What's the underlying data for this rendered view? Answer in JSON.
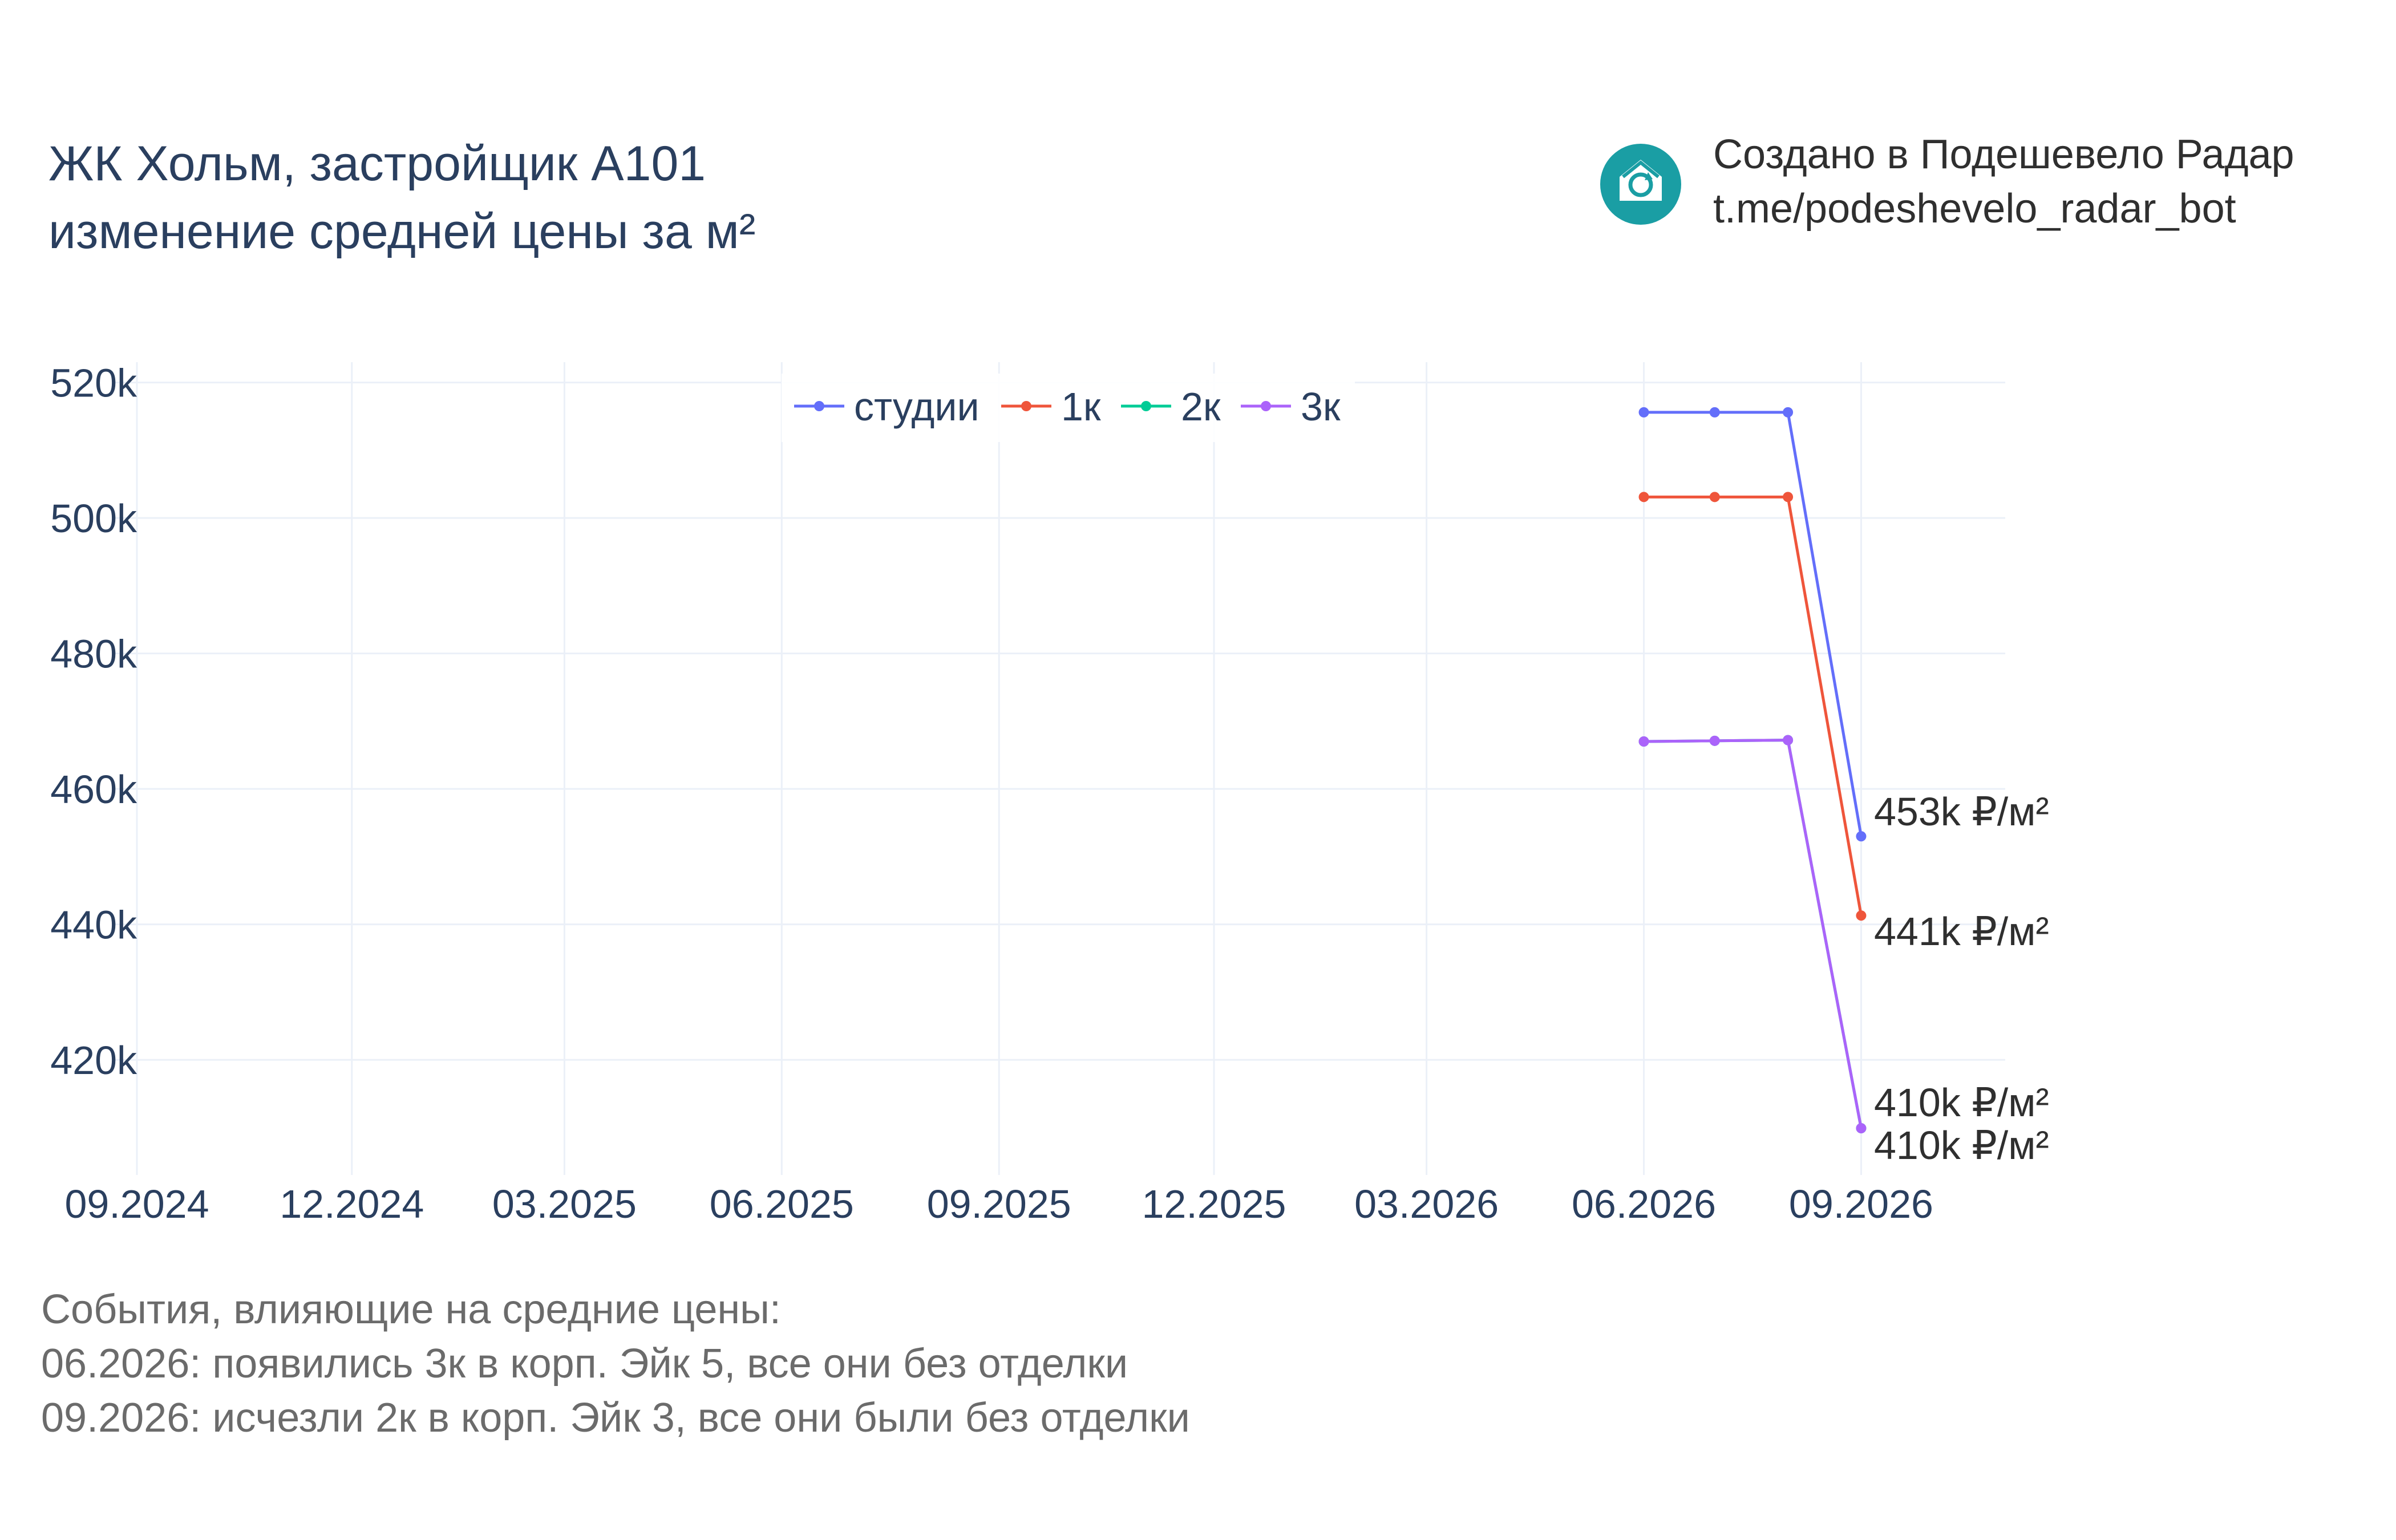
{
  "header": {
    "title_line1": "ЖК Хольм, застройщик A101",
    "title_line2": "изменение средней цены за м²"
  },
  "credit": {
    "line1": "Создано в Подешевело Радар",
    "line2": "t.me/podeshevelo_radar_bot",
    "logo_icon": "house-refresh-icon",
    "logo_color": "#1a9ea4"
  },
  "events": {
    "heading": "События, влияющие на средние цены:",
    "items": [
      "06.2026: появились 3к в корп. Эйк 5, все они без отделки",
      "09.2026: исчезли 2к в корп. Эйк 3, все они были без отделки"
    ]
  },
  "chart_data": {
    "type": "line",
    "title": "ЖК Хольм, застройщик A101 изменение средней цены за м²",
    "xlabel": "",
    "ylabel": "",
    "x_ticks": [
      "09.2024",
      "12.2024",
      "03.2025",
      "06.2025",
      "09.2025",
      "12.2025",
      "03.2026",
      "06.2026",
      "09.2026"
    ],
    "x_tick_dates": [
      "2024-09-01",
      "2024-12-01",
      "2025-03-01",
      "2025-06-01",
      "2025-09-01",
      "2025-12-01",
      "2026-03-01",
      "2026-06-01",
      "2026-09-01"
    ],
    "x_range": [
      "2024-09-01",
      "2026-11-01"
    ],
    "y_ticks": [
      "420k",
      "440k",
      "460k",
      "480k",
      "500k",
      "520k"
    ],
    "y_tick_values": [
      420000,
      440000,
      460000,
      480000,
      500000,
      520000
    ],
    "ylim": [
      403000,
      523000
    ],
    "grid": true,
    "legend_position": "top-center",
    "series": [
      {
        "name": "студии",
        "color": "#636efa",
        "points": [
          [
            "2026-06-01",
            515600
          ],
          [
            "2026-07-01",
            515600
          ],
          [
            "2026-08-01",
            515600
          ],
          [
            "2026-09-01",
            453000
          ]
        ]
      },
      {
        "name": "1к",
        "color": "#ef553b",
        "points": [
          [
            "2026-06-01",
            503100
          ],
          [
            "2026-07-01",
            503100
          ],
          [
            "2026-08-01",
            503100
          ],
          [
            "2026-09-01",
            441300
          ]
        ]
      },
      {
        "name": "2к",
        "color": "#00cc96",
        "points": [
          [
            "2026-06-01",
            467000
          ],
          [
            "2026-07-01",
            467100
          ],
          [
            "2026-08-01",
            467200
          ],
          [
            "2026-09-01",
            409900
          ]
        ]
      },
      {
        "name": "3к",
        "color": "#ab63fa",
        "points": [
          [
            "2026-06-01",
            467000
          ],
          [
            "2026-07-01",
            467100
          ],
          [
            "2026-08-01",
            467200
          ],
          [
            "2026-09-01",
            409900
          ]
        ]
      }
    ],
    "end_labels": [
      "453k ₽/м²",
      "441k ₽/м²",
      "410k ₽/м²",
      "410k ₽/м²"
    ]
  }
}
